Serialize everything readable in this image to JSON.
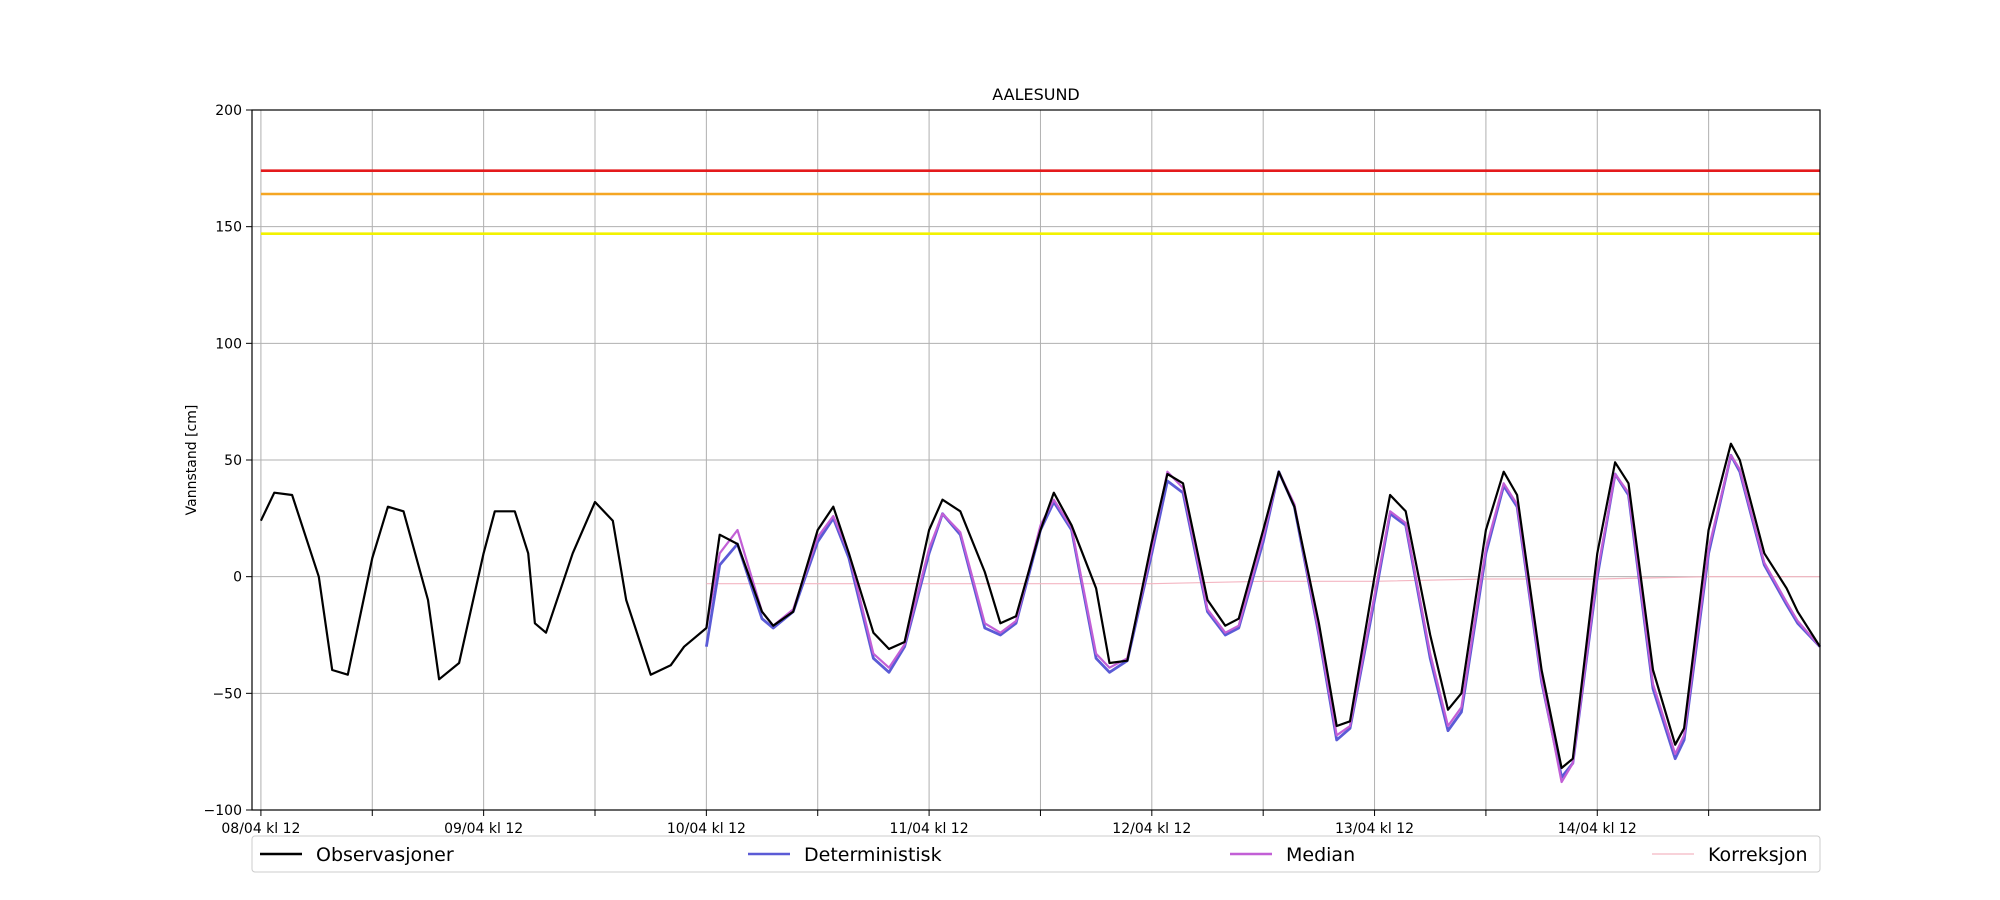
{
  "chart_data": {
    "type": "line",
    "title": "AALESUND",
    "ylabel": "Vannstand [cm]",
    "xlabel": "",
    "ylim": [
      -100,
      200
    ],
    "yticks": [
      -100,
      -50,
      0,
      50,
      100,
      150,
      200
    ],
    "ytick_labels": [
      "−100",
      "−50",
      "0",
      "50",
      "100",
      "150",
      "200"
    ],
    "x_unit": "days since 08/04 kl 12",
    "xlim": [
      -0.04,
      7.0
    ],
    "xtick_labels": [
      "08/04 kl 12",
      "09/04 kl 12",
      "10/04 kl 12",
      "11/04 kl 12",
      "12/04 kl 12",
      "13/04 kl 12",
      "14/04 kl 12"
    ],
    "grid": true,
    "legend_position": "bottom",
    "threshold_lines": [
      {
        "value": 174,
        "color": "#e41a1c"
      },
      {
        "value": 164,
        "color": "#f5a623"
      },
      {
        "value": 147,
        "color": "#f2f200"
      }
    ],
    "series": [
      {
        "name": "Observasjoner",
        "color": "#000000",
        "x": [
          0.0,
          0.06,
          0.14,
          0.26,
          0.32,
          0.39,
          0.5,
          0.57,
          0.64,
          0.75,
          0.8,
          0.89,
          1.0,
          1.05,
          1.14,
          1.2,
          1.23,
          1.28,
          1.4,
          1.5,
          1.58,
          1.64,
          1.75,
          1.84,
          1.9,
          2.0,
          2.06,
          2.14,
          2.25,
          2.3,
          2.39,
          2.5,
          2.57,
          2.64,
          2.75,
          2.82,
          2.89,
          3.0,
          3.06,
          3.14,
          3.25,
          3.32,
          3.39,
          3.5,
          3.56,
          3.64,
          3.75,
          3.81,
          3.89,
          4.0,
          4.07,
          4.14,
          4.25,
          4.33,
          4.39,
          4.5,
          4.57,
          4.64,
          4.75,
          4.83,
          4.89,
          5.0,
          5.07,
          5.14,
          5.25,
          5.33,
          5.39,
          5.5,
          5.58,
          5.64,
          5.75,
          5.84,
          5.89,
          6.0,
          6.08,
          6.14,
          6.25,
          6.35,
          6.39,
          6.5,
          6.6,
          6.64,
          6.75,
          6.85,
          6.9,
          7.0
        ],
        "y": [
          24,
          36,
          35,
          0,
          -40,
          -42,
          8,
          30,
          28,
          -10,
          -44,
          -37,
          10,
          28,
          28,
          10,
          -20,
          -24,
          10,
          32,
          24,
          -10,
          -42,
          -38,
          -30,
          -22,
          18,
          14,
          -15,
          -21,
          -15,
          20,
          30,
          10,
          -24,
          -31,
          -28,
          20,
          33,
          28,
          2,
          -20,
          -17,
          20,
          36,
          22,
          -5,
          -37,
          -36,
          15,
          44,
          40,
          -10,
          -21,
          -18,
          20,
          45,
          30,
          -20,
          -64,
          -62,
          0,
          35,
          28,
          -25,
          -57,
          -50,
          20,
          45,
          35,
          -40,
          -82,
          -78,
          10,
          49,
          40,
          -40,
          -72,
          -65,
          20,
          57,
          50,
          10,
          -5,
          -15,
          -30
        ]
      },
      {
        "name": "Deterministisk",
        "color": "#5b5bd6",
        "x": [
          2.0,
          2.06,
          2.14,
          2.25,
          2.3,
          2.39,
          2.5,
          2.57,
          2.64,
          2.75,
          2.82,
          2.89,
          3.0,
          3.06,
          3.14,
          3.25,
          3.32,
          3.39,
          3.5,
          3.56,
          3.64,
          3.75,
          3.81,
          3.89,
          4.0,
          4.07,
          4.14,
          4.25,
          4.33,
          4.39,
          4.5,
          4.57,
          4.64,
          4.75,
          4.83,
          4.89,
          5.0,
          5.07,
          5.14,
          5.25,
          5.33,
          5.39,
          5.5,
          5.58,
          5.64,
          5.75,
          5.84,
          5.89,
          6.0,
          6.08,
          6.14,
          6.25,
          6.35,
          6.39,
          6.5,
          6.6,
          6.64,
          6.75,
          6.85,
          6.9,
          7.0
        ],
        "y": [
          -30,
          5,
          14,
          -18,
          -22,
          -15,
          15,
          25,
          8,
          -35,
          -41,
          -30,
          10,
          27,
          18,
          -22,
          -25,
          -20,
          20,
          32,
          20,
          -35,
          -41,
          -36,
          10,
          41,
          36,
          -15,
          -25,
          -22,
          15,
          45,
          30,
          -25,
          -70,
          -65,
          -10,
          27,
          22,
          -35,
          -66,
          -58,
          10,
          39,
          30,
          -45,
          -86,
          -80,
          0,
          44,
          35,
          -48,
          -78,
          -70,
          10,
          52,
          45,
          5,
          -12,
          -20,
          -30
        ]
      },
      {
        "name": "Median",
        "color": "#c25fd6",
        "x": [
          2.0,
          2.06,
          2.14,
          2.25,
          2.3,
          2.39,
          2.5,
          2.57,
          2.64,
          2.75,
          2.82,
          2.89,
          3.0,
          3.06,
          3.14,
          3.25,
          3.32,
          3.39,
          3.5,
          3.56,
          3.64,
          3.75,
          3.81,
          3.89,
          4.0,
          4.07,
          4.14,
          4.25,
          4.33,
          4.39,
          4.5,
          4.57,
          4.64,
          4.75,
          4.83,
          4.89,
          5.0,
          5.07,
          5.14,
          5.25,
          5.33,
          5.39,
          5.5,
          5.58,
          5.64,
          5.75,
          5.84,
          5.89,
          6.0,
          6.08,
          6.14,
          6.25,
          6.35,
          6.39,
          6.5,
          6.6,
          6.64,
          6.75,
          6.85,
          6.9,
          7.0
        ],
        "y": [
          -22,
          10,
          20,
          -15,
          -21,
          -14,
          17,
          26,
          10,
          -33,
          -39,
          -29,
          12,
          27,
          19,
          -20,
          -24,
          -19,
          22,
          33,
          21,
          -33,
          -39,
          -35,
          12,
          45,
          38,
          -14,
          -24,
          -21,
          17,
          45,
          31,
          -24,
          -68,
          -64,
          -8,
          28,
          23,
          -33,
          -64,
          -56,
          12,
          40,
          31,
          -44,
          -88,
          -80,
          2,
          44,
          36,
          -46,
          -76,
          -68,
          12,
          52,
          46,
          6,
          -11,
          -19,
          -30
        ]
      },
      {
        "name": "Korreksjon",
        "color": "#f4b6c2",
        "x": [
          2.0,
          2.5,
          3.0,
          3.5,
          4.0,
          4.5,
          5.0,
          5.5,
          6.0,
          6.5,
          7.0
        ],
        "y": [
          -3,
          -3,
          -3,
          -3,
          -3,
          -2,
          -2,
          -1,
          -1,
          0,
          0
        ]
      }
    ]
  }
}
